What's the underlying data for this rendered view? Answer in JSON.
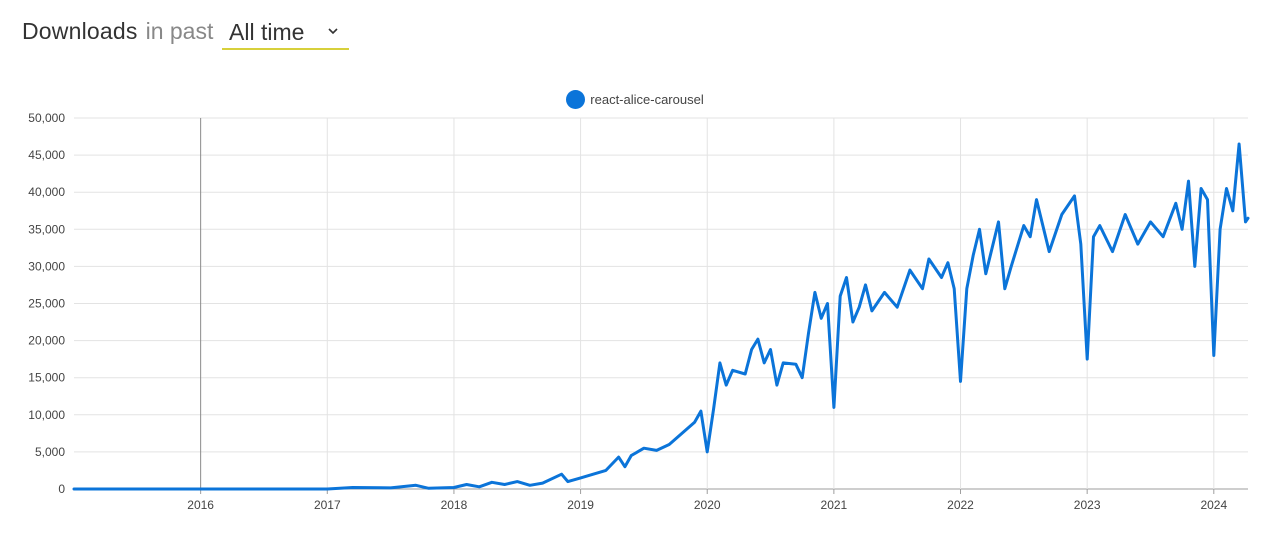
{
  "header": {
    "title": "Downloads",
    "subtitle": "in past",
    "period_selected": "All time"
  },
  "colors": {
    "series": "#0b74d9",
    "grid": "#e3e3e3",
    "axis": "#9e9e9e",
    "text": "#333333",
    "muted": "#888888",
    "underline": "#d7d03b"
  },
  "chart_data": {
    "type": "line",
    "x_axis_ticks": [
      "2016",
      "2017",
      "2018",
      "2019",
      "2020",
      "2021",
      "2022",
      "2023",
      "2024"
    ],
    "y_axis_ticks": [
      "0",
      "5,000",
      "10,000",
      "15,000",
      "20,000",
      "25,000",
      "30,000",
      "35,000",
      "40,000",
      "45,000",
      "50,000"
    ],
    "xlim": [
      2015.0,
      2024.27
    ],
    "ylim": [
      0,
      50000
    ],
    "grid": true,
    "legend_position": "top-center",
    "series": [
      {
        "name": "react-alice-carousel",
        "points": [
          [
            2015.0,
            0
          ],
          [
            2016.0,
            0
          ],
          [
            2017.0,
            0
          ],
          [
            2017.2,
            200
          ],
          [
            2017.5,
            150
          ],
          [
            2017.7,
            500
          ],
          [
            2017.8,
            100
          ],
          [
            2018.0,
            200
          ],
          [
            2018.1,
            600
          ],
          [
            2018.2,
            300
          ],
          [
            2018.3,
            900
          ],
          [
            2018.4,
            600
          ],
          [
            2018.5,
            1000
          ],
          [
            2018.6,
            500
          ],
          [
            2018.7,
            800
          ],
          [
            2018.85,
            2000
          ],
          [
            2018.9,
            1000
          ],
          [
            2019.0,
            1500
          ],
          [
            2019.1,
            2000
          ],
          [
            2019.2,
            2500
          ],
          [
            2019.3,
            4300
          ],
          [
            2019.35,
            3000
          ],
          [
            2019.4,
            4500
          ],
          [
            2019.5,
            5500
          ],
          [
            2019.6,
            5200
          ],
          [
            2019.7,
            6000
          ],
          [
            2019.8,
            7500
          ],
          [
            2019.9,
            9000
          ],
          [
            2019.95,
            10500
          ],
          [
            2020.0,
            5000
          ],
          [
            2020.05,
            10800
          ],
          [
            2020.1,
            17000
          ],
          [
            2020.15,
            14000
          ],
          [
            2020.2,
            16000
          ],
          [
            2020.3,
            15500
          ],
          [
            2020.35,
            18800
          ],
          [
            2020.4,
            20200
          ],
          [
            2020.45,
            17000
          ],
          [
            2020.5,
            18800
          ],
          [
            2020.55,
            14000
          ],
          [
            2020.6,
            17000
          ],
          [
            2020.7,
            16800
          ],
          [
            2020.75,
            15000
          ],
          [
            2020.8,
            21000
          ],
          [
            2020.85,
            26500
          ],
          [
            2020.9,
            23000
          ],
          [
            2020.95,
            25000
          ],
          [
            2021.0,
            11000
          ],
          [
            2021.05,
            26000
          ],
          [
            2021.1,
            28500
          ],
          [
            2021.15,
            22500
          ],
          [
            2021.2,
            24500
          ],
          [
            2021.25,
            27500
          ],
          [
            2021.3,
            24000
          ],
          [
            2021.4,
            26500
          ],
          [
            2021.5,
            24500
          ],
          [
            2021.6,
            29500
          ],
          [
            2021.7,
            27000
          ],
          [
            2021.75,
            31000
          ],
          [
            2021.85,
            28500
          ],
          [
            2021.9,
            30500
          ],
          [
            2021.95,
            27000
          ],
          [
            2022.0,
            14500
          ],
          [
            2022.05,
            27000
          ],
          [
            2022.1,
            31500
          ],
          [
            2022.15,
            35000
          ],
          [
            2022.2,
            29000
          ],
          [
            2022.3,
            36000
          ],
          [
            2022.35,
            27000
          ],
          [
            2022.4,
            30000
          ],
          [
            2022.5,
            35500
          ],
          [
            2022.55,
            34000
          ],
          [
            2022.6,
            39000
          ],
          [
            2022.7,
            32000
          ],
          [
            2022.8,
            37000
          ],
          [
            2022.9,
            39500
          ],
          [
            2022.95,
            33000
          ],
          [
            2023.0,
            17500
          ],
          [
            2023.05,
            34000
          ],
          [
            2023.1,
            35500
          ],
          [
            2023.2,
            32000
          ],
          [
            2023.3,
            37000
          ],
          [
            2023.4,
            33000
          ],
          [
            2023.5,
            36000
          ],
          [
            2023.6,
            34000
          ],
          [
            2023.7,
            38500
          ],
          [
            2023.75,
            35000
          ],
          [
            2023.8,
            41500
          ],
          [
            2023.85,
            30000
          ],
          [
            2023.9,
            40500
          ],
          [
            2023.95,
            39000
          ],
          [
            2024.0,
            18000
          ],
          [
            2024.05,
            35000
          ],
          [
            2024.1,
            40500
          ],
          [
            2024.15,
            37500
          ],
          [
            2024.2,
            46500
          ],
          [
            2024.25,
            36000
          ],
          [
            2024.27,
            36500
          ]
        ]
      }
    ]
  }
}
